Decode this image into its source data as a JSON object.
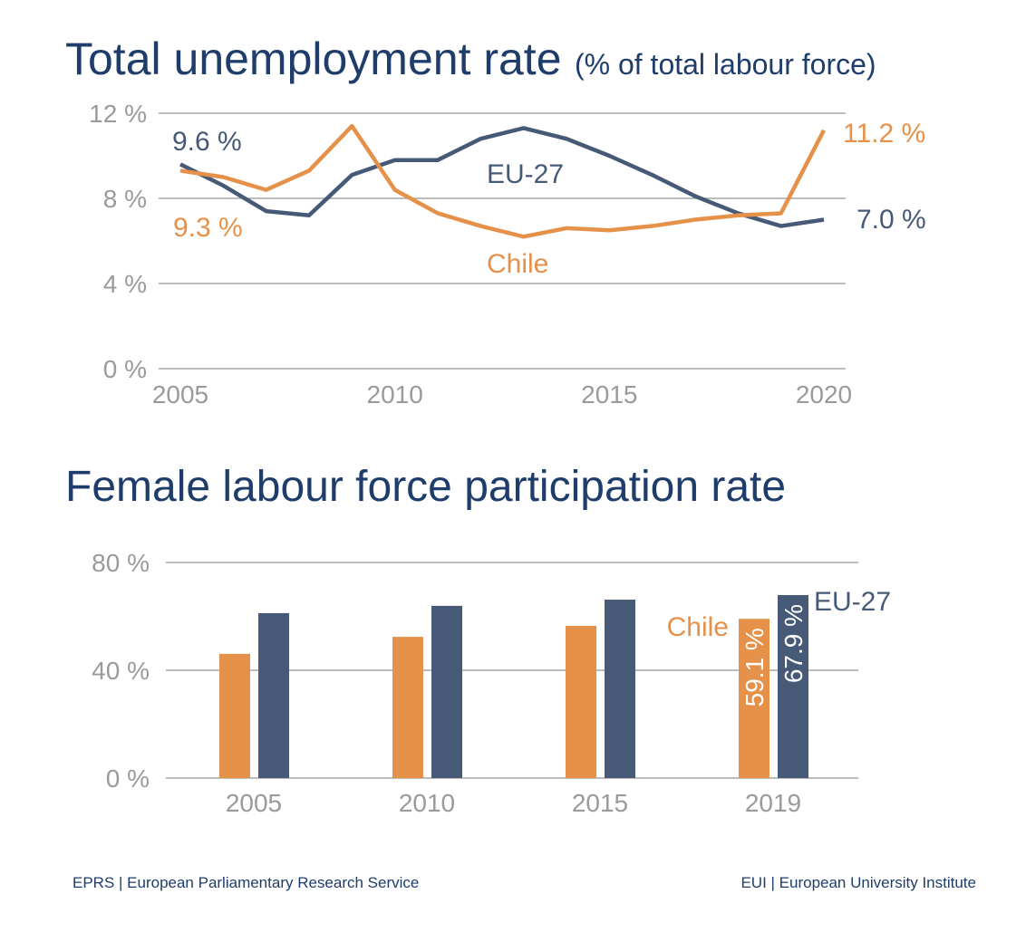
{
  "colors": {
    "chile": "#e6914a",
    "eu": "#465a78",
    "title": "#1f3d6b",
    "axis": "#9a9a9a"
  },
  "chart_data": [
    {
      "type": "line",
      "title": "Total unemployment rate",
      "subtitle": "(% of total labour force)",
      "x": [
        2005,
        2006,
        2007,
        2008,
        2009,
        2010,
        2011,
        2012,
        2013,
        2014,
        2015,
        2016,
        2017,
        2018,
        2019,
        2020
      ],
      "xticks": [
        "2005",
        "2010",
        "2015",
        "2020"
      ],
      "yticks": [
        "0 %",
        "4 %",
        "8 %",
        "12 %"
      ],
      "ylim": [
        0,
        12
      ],
      "grid": true,
      "series": [
        {
          "name": "EU-27",
          "color": "#465a78",
          "values": [
            9.6,
            8.6,
            7.4,
            7.2,
            9.1,
            9.8,
            9.8,
            10.8,
            11.3,
            10.8,
            10.0,
            9.1,
            8.1,
            7.3,
            6.7,
            7.0
          ],
          "start_label": "9.6 %",
          "end_label": "7.0 %"
        },
        {
          "name": "Chile",
          "color": "#e6914a",
          "values": [
            9.3,
            9.0,
            8.4,
            9.3,
            11.4,
            8.4,
            7.3,
            6.7,
            6.2,
            6.6,
            6.5,
            6.7,
            7.0,
            7.2,
            7.3,
            11.2
          ],
          "start_label": "9.3 %",
          "end_label": "11.2 %"
        }
      ]
    },
    {
      "type": "bar",
      "title": "Female labour force participation rate",
      "categories": [
        "2005",
        "2010",
        "2015",
        "2019"
      ],
      "yticks": [
        "0 %",
        "40 %",
        "80 %"
      ],
      "ylim": [
        0,
        80
      ],
      "grid": true,
      "series": [
        {
          "name": "Chile",
          "color": "#e6914a",
          "values": [
            46.1,
            52.4,
            56.5,
            59.1
          ],
          "last_label": "59.1 %"
        },
        {
          "name": "EU-27",
          "color": "#465a78",
          "values": [
            61.2,
            63.9,
            66.2,
            67.9
          ],
          "last_label": "67.9 %"
        }
      ]
    }
  ],
  "footer": {
    "left": "EPRS | European Parliamentary Research Service",
    "right": "EUI | European University Institute"
  }
}
